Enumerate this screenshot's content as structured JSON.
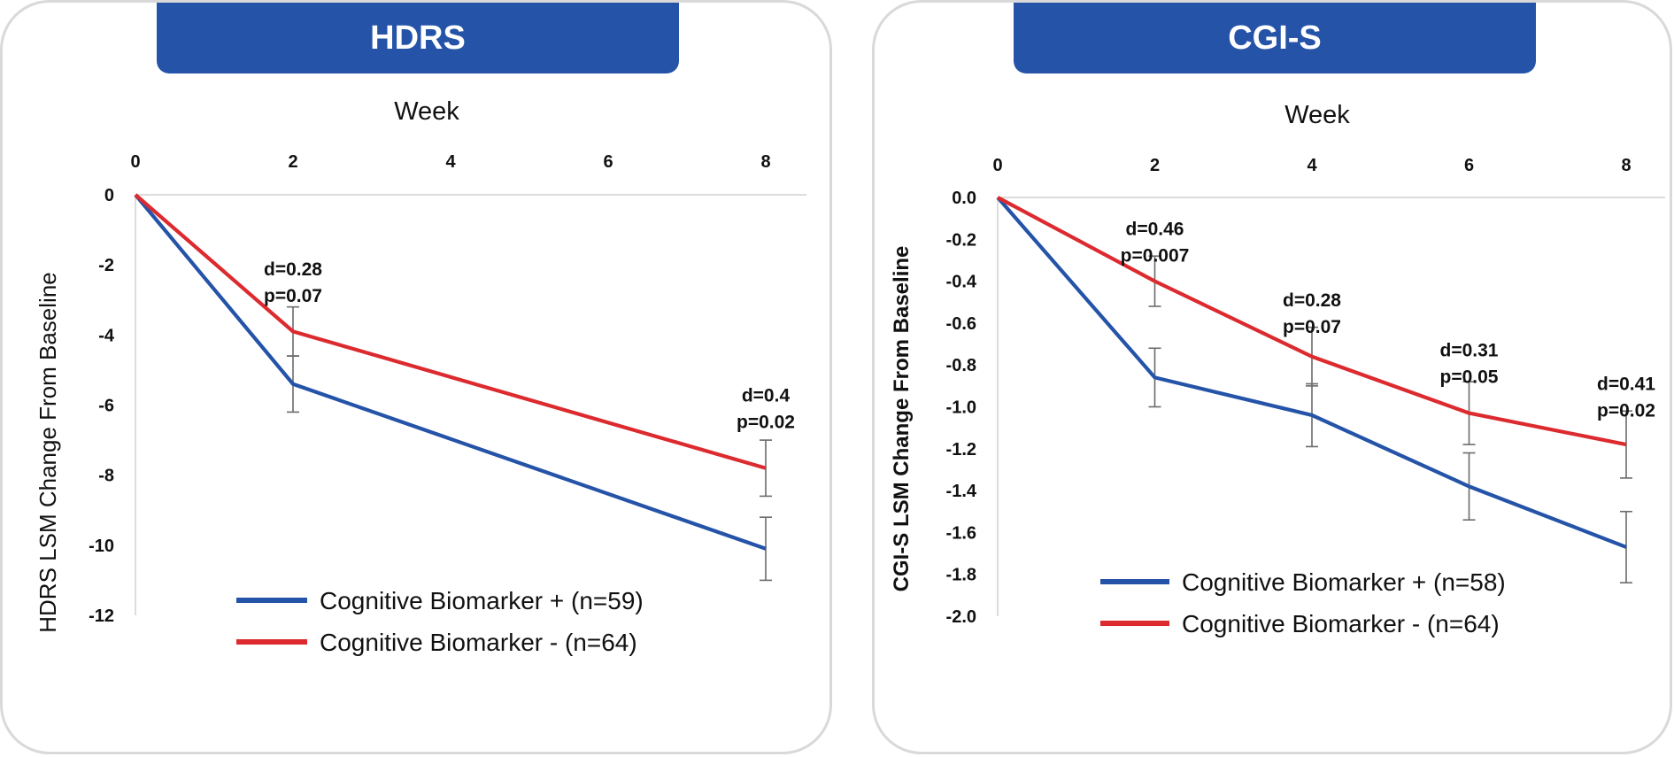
{
  "colors": {
    "series_positive": "#2453a8",
    "series_negative": "#dc2a2f",
    "banner": "#2453a8",
    "errorbar": "#6b6b6b"
  },
  "chart_data": [
    {
      "type": "line",
      "title": "HDRS",
      "xlabel": "Week",
      "ylabel": "HDRS LSM Change From Baseline",
      "x_ticks": [
        "0",
        "2",
        "4",
        "6",
        "8"
      ],
      "y_ticks": [
        "0",
        "-2",
        "-4",
        "-6",
        "-8",
        "-10",
        "-12"
      ],
      "xlim": [
        0,
        8.5
      ],
      "ylim": [
        -12,
        0
      ],
      "series": [
        {
          "name": "Cognitive Biomarker + (n=59)",
          "color": "#2453a8",
          "x": [
            0,
            2,
            8
          ],
          "values": [
            0,
            -5.4,
            -10.1
          ],
          "err": [
            0,
            0.8,
            0.9
          ]
        },
        {
          "name": "Cognitive Biomarker - (n=64)",
          "color": "#dc2a2f",
          "x": [
            0,
            2,
            8
          ],
          "values": [
            0,
            -3.9,
            -7.8
          ],
          "err": [
            0,
            0.7,
            0.8
          ]
        }
      ],
      "annotations": [
        {
          "x": 2,
          "value": -2.3,
          "lines": [
            "d=0.28",
            "p=0.07"
          ]
        },
        {
          "x": 8,
          "value": -5.9,
          "lines": [
            "d=0.4",
            "p=0.02"
          ]
        }
      ]
    },
    {
      "type": "line",
      "title": "CGI-S",
      "xlabel": "Week",
      "ylabel": "CGI-S LSM Change From Baseline",
      "x_ticks": [
        "0",
        "2",
        "4",
        "6",
        "8"
      ],
      "y_ticks": [
        "0.0",
        "-0.2",
        "-0.4",
        "-0.6",
        "-0.8",
        "-1.0",
        "-1.2",
        "-1.4",
        "-1.6",
        "-1.8",
        "-2.0"
      ],
      "xlim": [
        0,
        8.5
      ],
      "ylim": [
        -2.0,
        0
      ],
      "series": [
        {
          "name": "Cognitive Biomarker + (n=58)",
          "color": "#2453a8",
          "x": [
            0,
            2,
            4,
            6,
            8
          ],
          "values": [
            0,
            -0.86,
            -1.04,
            -1.38,
            -1.67
          ],
          "err": [
            0,
            0.14,
            0.15,
            0.16,
            0.17
          ]
        },
        {
          "name": "Cognitive Biomarker - (n=64)",
          "color": "#dc2a2f",
          "x": [
            0,
            2,
            4,
            6,
            8
          ],
          "values": [
            0,
            -0.4,
            -0.76,
            -1.03,
            -1.18
          ],
          "err": [
            0,
            0.12,
            0.14,
            0.15,
            0.16
          ]
        }
      ],
      "annotations": [
        {
          "x": 2,
          "value": -0.18,
          "lines": [
            "d=0.46",
            "p=0.007"
          ]
        },
        {
          "x": 4,
          "value": -0.52,
          "lines": [
            "d=0.28",
            "p=0.07"
          ]
        },
        {
          "x": 6,
          "value": -0.76,
          "lines": [
            "d=0.31",
            "p=0.05"
          ]
        },
        {
          "x": 8,
          "value": -0.92,
          "lines": [
            "d=0.41",
            "p=0.02"
          ]
        }
      ]
    }
  ]
}
